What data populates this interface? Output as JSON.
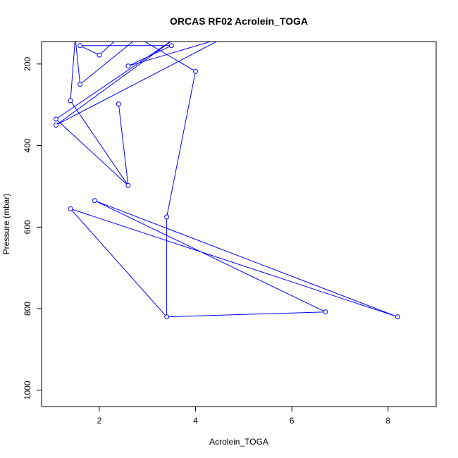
{
  "chart_data": {
    "type": "line",
    "title": "ORCAS RF02 Acrolein_TOGA",
    "xlabel": "Acrolein_TOGA",
    "ylabel": "Pressure (mbar)",
    "xlim": [
      0.8,
      9.0
    ],
    "ylim": [
      1040,
      145
    ],
    "y_inverted": true,
    "x_ticks": [
      2,
      4,
      6,
      8
    ],
    "y_ticks": [
      200,
      400,
      600,
      800,
      1000
    ],
    "grid": false,
    "legend": "none",
    "color": "#0000ff",
    "series": [
      {
        "points": [
          {
            "x": 3.4,
            "y": 820
          },
          {
            "x": 6.7,
            "y": 808
          },
          {
            "x": 1.9,
            "y": 535
          },
          {
            "x": 8.2,
            "y": 820
          },
          {
            "x": 1.4,
            "y": 555
          },
          {
            "x": 3.4,
            "y": 820
          },
          {
            "x": 3.4,
            "y": 575
          },
          {
            "x": 4.0,
            "y": 218
          },
          {
            "x": 2.8,
            "y": 135
          },
          {
            "x": 1.6,
            "y": 250
          },
          {
            "x": 1.5,
            "y": 135
          },
          {
            "x": 1.4,
            "y": 290
          },
          {
            "x": 2.6,
            "y": 498
          },
          {
            "x": 2.4,
            "y": 298
          },
          {
            "x": 2.6,
            "y": 498
          },
          {
            "x": 1.1,
            "y": 335
          },
          {
            "x": 3.6,
            "y": 135
          },
          {
            "x": 1.1,
            "y": 350
          },
          {
            "x": 4.6,
            "y": 135
          },
          {
            "x": 2.6,
            "y": 205
          },
          {
            "x": 3.5,
            "y": 155
          },
          {
            "x": 1.6,
            "y": 155
          },
          {
            "x": 2.0,
            "y": 178
          },
          {
            "x": 2.4,
            "y": 135
          }
        ],
        "markers": [
          0,
          1,
          2,
          3,
          4,
          6,
          7,
          9,
          11,
          12,
          13,
          15,
          17,
          19,
          20,
          21,
          22
        ]
      }
    ]
  }
}
